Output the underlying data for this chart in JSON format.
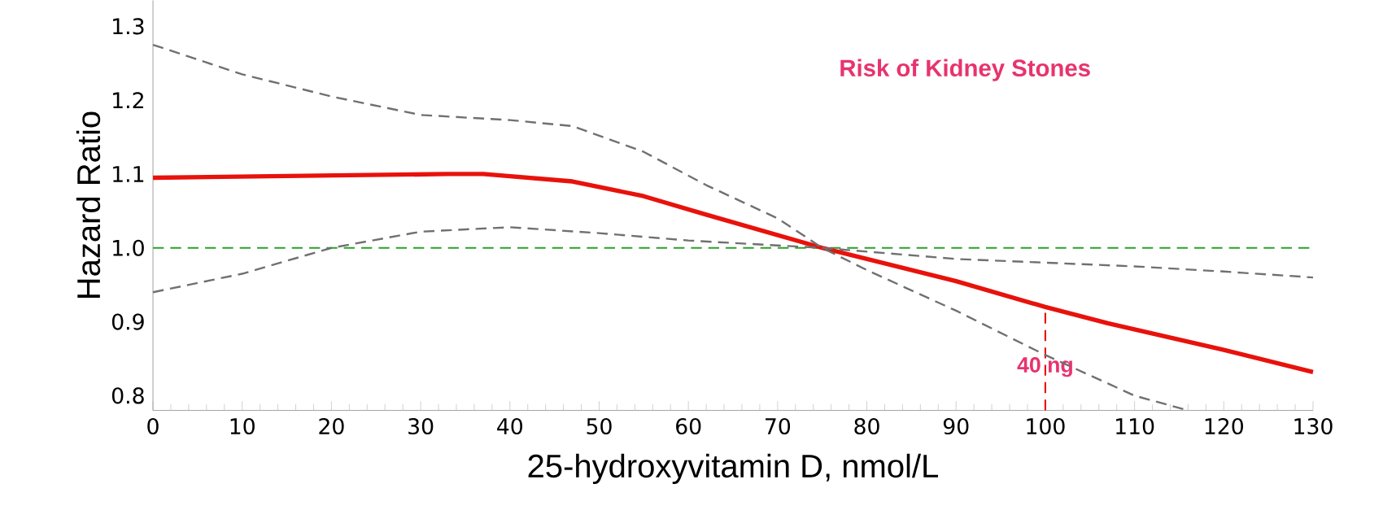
{
  "chart_data": {
    "type": "line",
    "title": "Risk of Kidney Stones",
    "xlabel": "25-hydroxyvitamin D, nmol/L",
    "ylabel": "Hazard Ratio",
    "xlim": [
      0,
      130
    ],
    "xticks": [
      0,
      10,
      20,
      30,
      40,
      50,
      60,
      70,
      80,
      90,
      100,
      110,
      120,
      130
    ],
    "ylim": [
      0.78,
      1.335
    ],
    "yticks": [
      0.8,
      0.9,
      {
        "value": 1.0,
        "label": "1.0"
      },
      1.1,
      1.2,
      1.3
    ],
    "series": [
      {
        "color": "#e8120c",
        "line_style": "solid",
        "x": [
          0,
          33,
          37,
          47,
          55,
          62,
          75,
          90,
          100,
          107,
          120,
          130
        ],
        "values": [
          1.095,
          1.1,
          1.1,
          1.09,
          1.07,
          1.045,
          1.0,
          0.955,
          0.92,
          0.898,
          0.862,
          0.832
        ]
      },
      {
        "color": "#707070",
        "line_style": "dashed",
        "x": [
          0,
          10,
          20,
          30,
          40,
          47,
          55,
          62,
          70,
          75,
          80,
          90,
          100,
          110,
          116
        ],
        "values": [
          1.275,
          1.235,
          1.205,
          1.18,
          1.173,
          1.165,
          1.13,
          1.085,
          1.04,
          1.0,
          0.97,
          0.915,
          0.855,
          0.8,
          0.78
        ]
      },
      {
        "color": "#707070",
        "line_style": "dashed",
        "x": [
          0,
          10,
          20,
          30,
          40,
          50,
          60,
          75,
          90,
          100,
          110,
          120,
          130
        ],
        "values": [
          0.94,
          0.965,
          1.0,
          1.022,
          1.028,
          1.02,
          1.01,
          1.0,
          0.985,
          0.98,
          0.975,
          0.968,
          0.96
        ]
      }
    ],
    "ref_lines": [
      {
        "axis": "y",
        "value": 1.0,
        "color": "#2ca02c",
        "line_style": "dashed"
      },
      {
        "axis": "x",
        "value": 100,
        "label": "40 ng",
        "color": "#e8120c",
        "line_style": "dashed"
      }
    ]
  }
}
